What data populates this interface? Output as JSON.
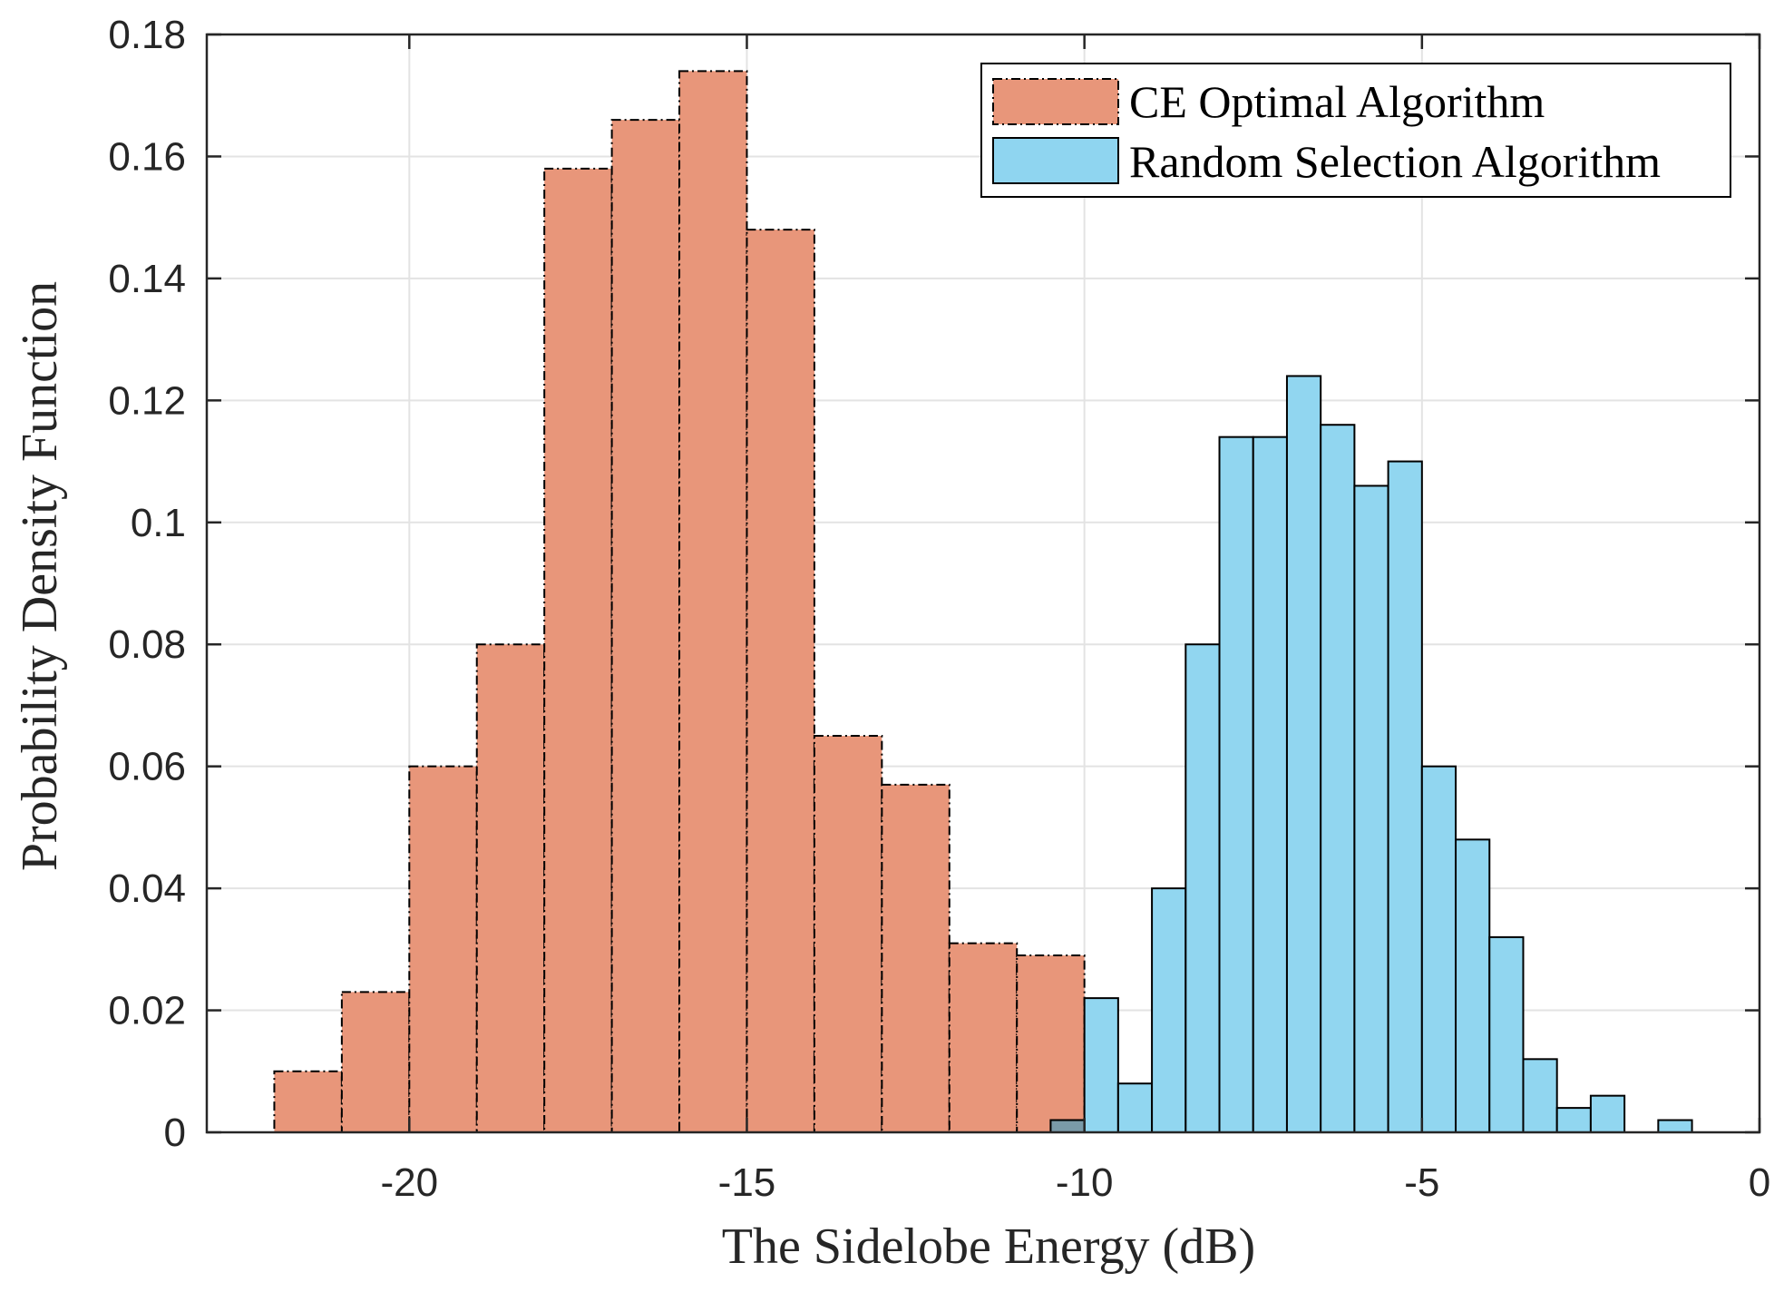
{
  "chart_data": {
    "type": "histogram",
    "title": "",
    "xlabel": "The Sidelobe Energy (dB)",
    "ylabel": "Probability Density Function",
    "xlim": [
      -23,
      0
    ],
    "ylim": [
      0,
      0.18
    ],
    "xticks": [
      -20,
      -15,
      -10,
      -5,
      0
    ],
    "xtick_labels": [
      "-20",
      "-15",
      "-10",
      "-5",
      "0"
    ],
    "yticks": [
      0,
      0.02,
      0.04,
      0.06,
      0.08,
      0.1,
      0.12,
      0.14,
      0.16,
      0.18
    ],
    "ytick_labels": [
      "0",
      "0.02",
      "0.04",
      "0.06",
      "0.08",
      "0.1",
      "0.12",
      "0.14",
      "0.16",
      "0.18"
    ],
    "grid": true,
    "legend_position": "top-right",
    "series": [
      {
        "name": "CE Optimal Algorithm",
        "color": "#E8967A",
        "edge_style": "dash-dot",
        "bin_edges": [
          -22,
          -21,
          -20,
          -19,
          -18,
          -17,
          -16,
          -15,
          -14,
          -13,
          -12,
          -11,
          -10
        ],
        "values": [
          0.01,
          0.023,
          0.06,
          0.08,
          0.158,
          0.166,
          0.174,
          0.148,
          0.065,
          0.057,
          0.031,
          0.029
        ]
      },
      {
        "name": "Random Selection Algorithm",
        "color": "#8FD5F0",
        "edge_style": "solid",
        "bin_edges": [
          -10.5,
          -10,
          -9.5,
          -9,
          -8.5,
          -8,
          -7.5,
          -7,
          -6.5,
          -6,
          -5.5,
          -5,
          -4.5,
          -4,
          -3.5,
          -3,
          -2.5,
          -2,
          -1.5,
          -1
        ],
        "values": [
          0.002,
          0.022,
          0.008,
          0.04,
          0.08,
          0.114,
          0.114,
          0.124,
          0.116,
          0.106,
          0.11,
          0.06,
          0.048,
          0.032,
          0.012,
          0.004,
          0.006,
          0.0,
          0.002
        ]
      }
    ]
  }
}
